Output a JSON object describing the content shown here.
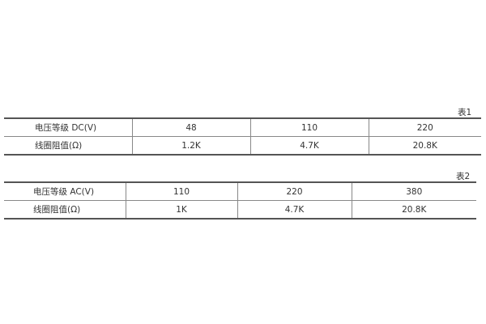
{
  "tables": [
    {
      "caption": "表1",
      "rows": [
        [
          "电压等级 DC(V)",
          "48",
          "110",
          "220"
        ],
        [
          "线圈阻值(Ω)",
          "1.2K",
          "4.7K",
          "20.8K"
        ]
      ]
    },
    {
      "caption": "表2",
      "rows": [
        [
          "电压等级 AC(V)",
          "110",
          "220",
          "380"
        ],
        [
          "线圈阻值(Ω)",
          "1K",
          "4.7K",
          "20.8K"
        ]
      ]
    }
  ]
}
